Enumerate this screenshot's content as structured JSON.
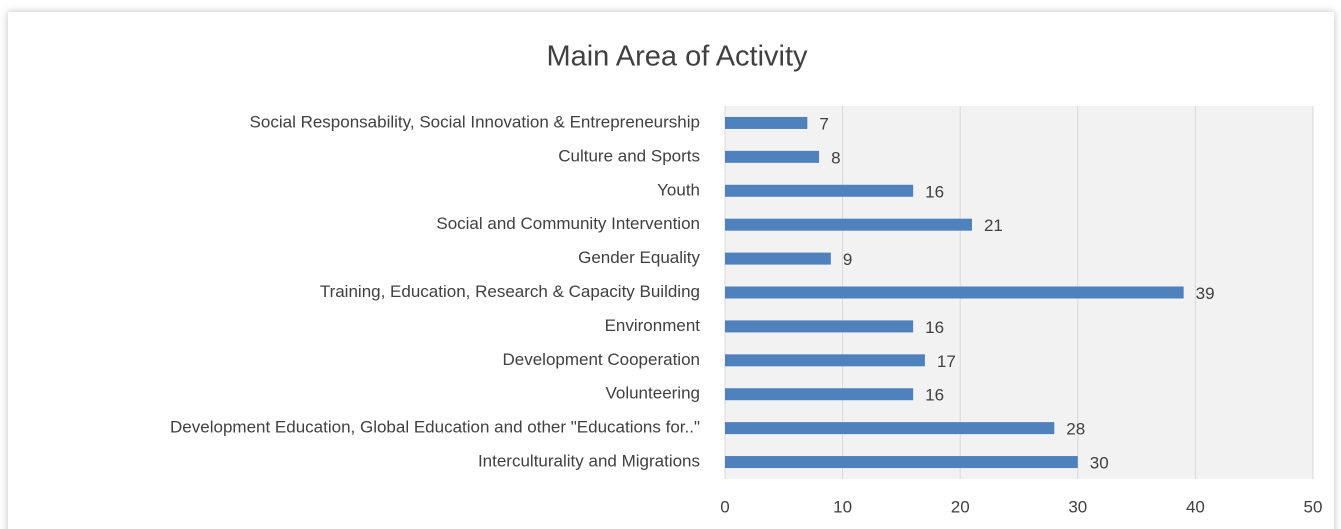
{
  "chart_data": {
    "type": "bar",
    "orientation": "horizontal",
    "title": "Main Area of Activity",
    "categories": [
      "Social Responsability, Social Innovation & Entrepreneurship",
      "Culture and Sports",
      "Youth",
      "Social and Community Intervention",
      "Gender Equality",
      "Training, Education, Research & Capacity Building",
      "Environment ",
      "Development Cooperation",
      "Volunteering",
      "Development Education, Global Education and other \"Educations for..\"",
      "Interculturality and Migrations"
    ],
    "values": [
      7,
      8,
      16,
      21,
      9,
      39,
      16,
      17,
      16,
      28,
      30
    ],
    "color": "#4f81bd",
    "xlim": [
      0,
      50
    ],
    "xticks": [
      0,
      10,
      20,
      30,
      40,
      50
    ],
    "grid": true
  }
}
